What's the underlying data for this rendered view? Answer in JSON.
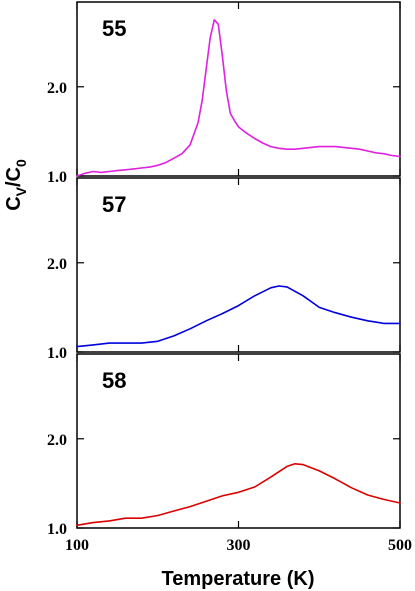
{
  "chart_data": {
    "type": "line",
    "x_label": "Temperature (K)",
    "y_label_main": "C",
    "y_label_sub1": "V",
    "y_label_slash": "/C",
    "y_label_sub2": "0",
    "xlim": [
      100,
      500
    ],
    "x_ticks": [
      100,
      300,
      500
    ],
    "x_tick_labels": [
      "100",
      "300",
      "500"
    ],
    "ylim": [
      1.0,
      2.95
    ],
    "y_ticks": [
      1.0,
      2.0
    ],
    "y_tick_labels": [
      "1.0",
      "2.0"
    ],
    "grid": false,
    "panels": [
      {
        "label": "55",
        "color": "#e020e0",
        "x": [
          100,
          110,
          120,
          130,
          140,
          150,
          160,
          170,
          180,
          190,
          200,
          210,
          220,
          230,
          240,
          250,
          255,
          260,
          265,
          270,
          275,
          280,
          285,
          290,
          295,
          300,
          310,
          320,
          330,
          340,
          350,
          360,
          370,
          380,
          390,
          400,
          410,
          420,
          430,
          440,
          450,
          460,
          470,
          480,
          490,
          500
        ],
        "y": [
          1.0,
          1.03,
          1.05,
          1.04,
          1.05,
          1.06,
          1.07,
          1.08,
          1.09,
          1.1,
          1.12,
          1.15,
          1.2,
          1.25,
          1.35,
          1.6,
          1.85,
          2.2,
          2.55,
          2.75,
          2.7,
          2.35,
          1.95,
          1.7,
          1.62,
          1.55,
          1.48,
          1.42,
          1.37,
          1.33,
          1.31,
          1.3,
          1.3,
          1.31,
          1.32,
          1.33,
          1.33,
          1.33,
          1.32,
          1.31,
          1.3,
          1.28,
          1.26,
          1.25,
          1.23,
          1.22
        ]
      },
      {
        "label": "57",
        "color": "#0000dd",
        "x": [
          100,
          120,
          140,
          160,
          180,
          200,
          220,
          240,
          260,
          280,
          300,
          320,
          340,
          350,
          360,
          380,
          400,
          420,
          440,
          460,
          480,
          500
        ],
        "y": [
          1.06,
          1.08,
          1.1,
          1.1,
          1.1,
          1.12,
          1.18,
          1.26,
          1.35,
          1.43,
          1.52,
          1.63,
          1.72,
          1.74,
          1.73,
          1.63,
          1.5,
          1.44,
          1.39,
          1.35,
          1.32,
          1.32
        ]
      },
      {
        "label": "58",
        "color": "#dd0000",
        "x": [
          100,
          120,
          140,
          160,
          180,
          200,
          220,
          240,
          260,
          280,
          300,
          320,
          340,
          360,
          370,
          380,
          400,
          420,
          440,
          460,
          480,
          500
        ],
        "y": [
          1.03,
          1.06,
          1.08,
          1.11,
          1.11,
          1.14,
          1.19,
          1.24,
          1.3,
          1.36,
          1.4,
          1.46,
          1.57,
          1.69,
          1.72,
          1.71,
          1.64,
          1.55,
          1.45,
          1.37,
          1.32,
          1.28
        ]
      }
    ]
  }
}
